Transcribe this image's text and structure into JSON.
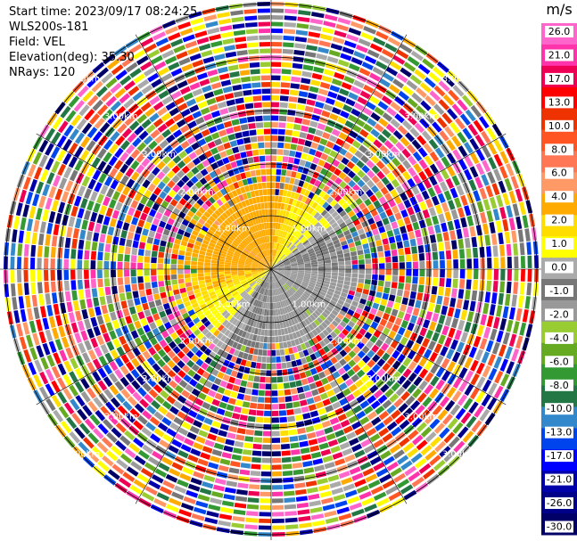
{
  "header": {
    "start_time": "Start time: 2023/09/17 08:24:25",
    "instrument": "WLS200s-181",
    "field": "Field: VEL",
    "elevation": "Elevation(deg): 35.30",
    "nrays": "NRays: 120"
  },
  "chart_data": {
    "type": "heatmap",
    "projection": "polar-ppi",
    "field": "VEL",
    "units": "m/s",
    "nrays": 120,
    "range_ring_labels": [
      "1.00km",
      "2.00km",
      "3.00km"
    ],
    "range_rings_km": [
      1,
      2,
      3
    ],
    "colorbar": {
      "title": "m/s",
      "ticks": [
        "26.0",
        "21.0",
        "17.0",
        "13.0",
        "10.0",
        "8.0",
        "6.0",
        "4.0",
        "2.0",
        "1.0",
        "0.0",
        "-1.0",
        "-2.0",
        "-4.0",
        "-6.0",
        "-8.0",
        "-10.0",
        "-13.0",
        "-17.0",
        "-21.0",
        "-26.0",
        "-30.0"
      ],
      "colors": [
        "#ff66cc",
        "#ff33aa",
        "#ee0055",
        "#ff0000",
        "#ee3300",
        "#ff5522",
        "#ff7755",
        "#ff9966",
        "#ffaa00",
        "#ffdd00",
        "#ffff00",
        "#aaaaaa",
        "#777777",
        "#999999",
        "#99cc33",
        "#66aa22",
        "#339933",
        "#227744",
        "#3388cc",
        "#0044ee",
        "#0000ff",
        "#0000aa",
        "#000088",
        "#000066"
      ]
    },
    "wind_pattern": {
      "toward_azimuth_deg": 315,
      "away_azimuth_deg": 135,
      "clear_air_range_km": 1.75
    }
  }
}
